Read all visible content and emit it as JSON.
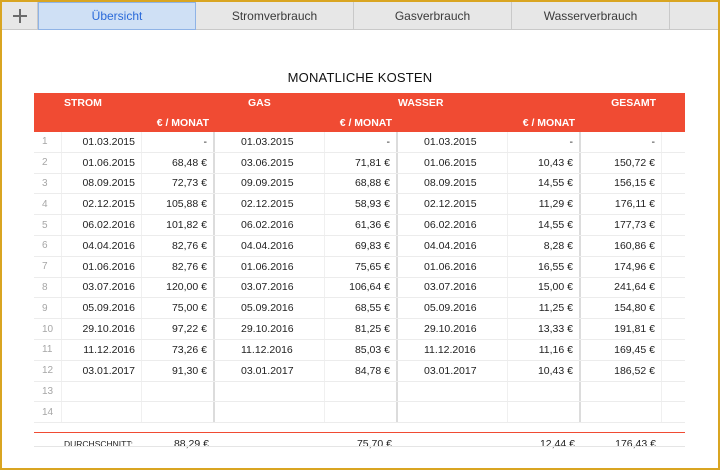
{
  "tabs": {
    "add_label": "+",
    "items": [
      {
        "label": "Übersicht",
        "active": true
      },
      {
        "label": "Stromverbrauch",
        "active": false
      },
      {
        "label": "Gasverbrauch",
        "active": false
      },
      {
        "label": "Wasserverbrauch",
        "active": false
      }
    ]
  },
  "title": "MONATLICHE KOSTEN",
  "headers": {
    "strom": "STROM",
    "gas": "GAS",
    "wasser": "WASSER",
    "gesamt": "GESAMT",
    "unit": "€ / MONAT"
  },
  "rows": [
    {
      "n": "1",
      "s_date": "01.03.2015",
      "s_val": "-",
      "g_date": "01.03.2015",
      "g_val": "-",
      "w_date": "01.03.2015",
      "w_val": "-",
      "total": "-"
    },
    {
      "n": "2",
      "s_date": "01.06.2015",
      "s_val": "68,48 €",
      "g_date": "03.06.2015",
      "g_val": "71,81 €",
      "w_date": "01.06.2015",
      "w_val": "10,43 €",
      "total": "150,72 €"
    },
    {
      "n": "3",
      "s_date": "08.09.2015",
      "s_val": "72,73 €",
      "g_date": "09.09.2015",
      "g_val": "68,88 €",
      "w_date": "08.09.2015",
      "w_val": "14,55 €",
      "total": "156,15 €"
    },
    {
      "n": "4",
      "s_date": "02.12.2015",
      "s_val": "105,88 €",
      "g_date": "02.12.2015",
      "g_val": "58,93 €",
      "w_date": "02.12.2015",
      "w_val": "11,29 €",
      "total": "176,11 €"
    },
    {
      "n": "5",
      "s_date": "06.02.2016",
      "s_val": "101,82 €",
      "g_date": "06.02.2016",
      "g_val": "61,36 €",
      "w_date": "06.02.2016",
      "w_val": "14,55 €",
      "total": "177,73 €"
    },
    {
      "n": "6",
      "s_date": "04.04.2016",
      "s_val": "82,76 €",
      "g_date": "04.04.2016",
      "g_val": "69,83 €",
      "w_date": "04.04.2016",
      "w_val": "8,28 €",
      "total": "160,86 €"
    },
    {
      "n": "7",
      "s_date": "01.06.2016",
      "s_val": "82,76 €",
      "g_date": "01.06.2016",
      "g_val": "75,65 €",
      "w_date": "01.06.2016",
      "w_val": "16,55 €",
      "total": "174,96 €"
    },
    {
      "n": "8",
      "s_date": "03.07.2016",
      "s_val": "120,00 €",
      "g_date": "03.07.2016",
      "g_val": "106,64 €",
      "w_date": "03.07.2016",
      "w_val": "15,00 €",
      "total": "241,64 €"
    },
    {
      "n": "9",
      "s_date": "05.09.2016",
      "s_val": "75,00 €",
      "g_date": "05.09.2016",
      "g_val": "68,55 €",
      "w_date": "05.09.2016",
      "w_val": "11,25 €",
      "total": "154,80 €"
    },
    {
      "n": "10",
      "s_date": "29.10.2016",
      "s_val": "97,22 €",
      "g_date": "29.10.2016",
      "g_val": "81,25 €",
      "w_date": "29.10.2016",
      "w_val": "13,33 €",
      "total": "191,81 €"
    },
    {
      "n": "11",
      "s_date": "11.12.2016",
      "s_val": "73,26 €",
      "g_date": "11.12.2016",
      "g_val": "85,03 €",
      "w_date": "11.12.2016",
      "w_val": "11,16 €",
      "total": "169,45 €"
    },
    {
      "n": "12",
      "s_date": "03.01.2017",
      "s_val": "91,30 €",
      "g_date": "03.01.2017",
      "g_val": "84,78 €",
      "w_date": "03.01.2017",
      "w_val": "10,43 €",
      "total": "186,52 €"
    },
    {
      "n": "13",
      "s_date": "",
      "s_val": "",
      "g_date": "",
      "g_val": "",
      "w_date": "",
      "w_val": "",
      "total": ""
    },
    {
      "n": "14",
      "s_date": "",
      "s_val": "",
      "g_date": "",
      "g_val": "",
      "w_date": "",
      "w_val": "",
      "total": ""
    }
  ],
  "footer": {
    "label": "DURCHSCHNITT:",
    "strom": "88,29 €",
    "gas": "75,70 €",
    "wasser": "12,44 €",
    "gesamt": "176,43 €"
  },
  "colors": {
    "header": "#f04b33",
    "active_tab_text": "#2b6ad9",
    "frame": "#d9a521"
  }
}
